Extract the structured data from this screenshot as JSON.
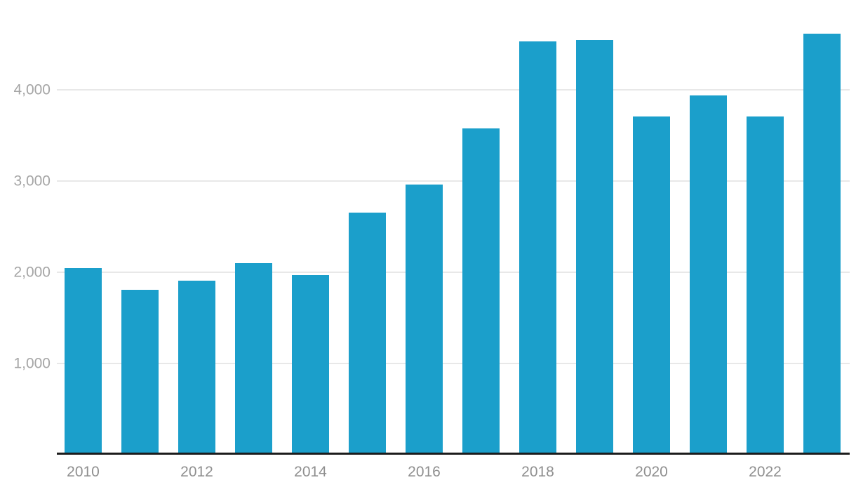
{
  "chart_data": {
    "type": "bar",
    "title": "",
    "xlabel": "",
    "ylabel": "",
    "categories": [
      "2010",
      "2011",
      "2012",
      "2013",
      "2014",
      "2015",
      "2016",
      "2017",
      "2018",
      "2019",
      "2020",
      "2021",
      "2022",
      "2023"
    ],
    "values": [
      2050,
      1810,
      1910,
      2100,
      1970,
      2655,
      2960,
      3580,
      4530,
      4545,
      3710,
      3935,
      3710,
      4615
    ],
    "ylim": [
      0,
      4985
    ],
    "y_tick_values": [
      1000,
      2000,
      3000,
      4000
    ],
    "y_tick_labels": [
      "1,000",
      "2,000",
      "3,000",
      "4,000"
    ],
    "x_tick_labels": [
      "2010",
      "2012",
      "2014",
      "2016",
      "2018",
      "2020",
      "2022"
    ],
    "x_tick_every_other_bar": true,
    "grid": true,
    "legend": "none",
    "colors": {
      "bar": "#1b9fcb",
      "gridline": "#e8e8e8",
      "axis_line": "#1c1c1c",
      "y_label": "#a5a5a5",
      "x_label": "#8f8f8f",
      "background": "#ffffff"
    }
  }
}
